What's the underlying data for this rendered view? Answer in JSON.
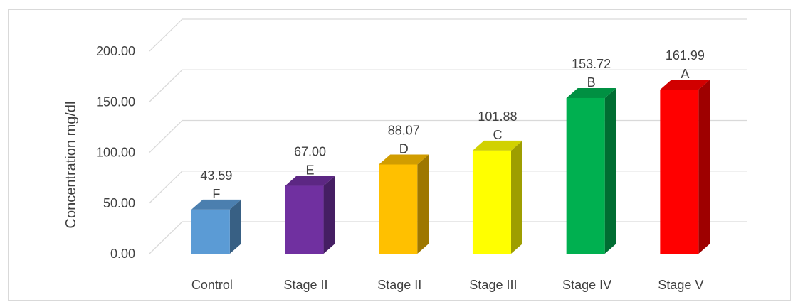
{
  "chart_data": {
    "type": "bar",
    "style": "3d-column",
    "title": "",
    "xlabel": "",
    "ylabel": "Concentration mg/dl",
    "ylim": [
      0,
      200
    ],
    "yticks": [
      "0.00",
      "50.00",
      "100.00",
      "150.00",
      "200.00"
    ],
    "categories": [
      "Control",
      "Stage II",
      "Stage II",
      "Stage III",
      "Stage IV",
      "Stage V"
    ],
    "values": [
      43.59,
      67.0,
      88.07,
      101.88,
      153.72,
      161.99
    ],
    "value_labels": [
      "43.59",
      "67.00",
      "88.07",
      "101.88",
      "153.72",
      "161.99"
    ],
    "significance_letters": [
      "F",
      "E",
      "D",
      "C",
      "B",
      "A"
    ],
    "colors": [
      "#5b9bd5",
      "#7030a0",
      "#ffc000",
      "#ffff00",
      "#00b050",
      "#ff0000"
    ],
    "grid": true,
    "legend": "none"
  }
}
